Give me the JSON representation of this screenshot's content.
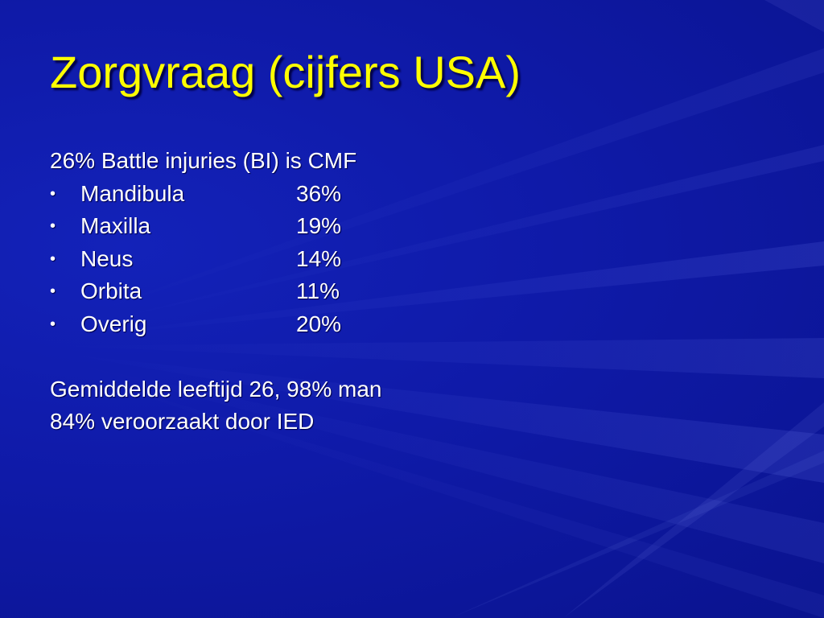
{
  "slide": {
    "title": "Zorgvraag (cijfers USA)",
    "intro": "26% Battle injuries (BI) is CMF",
    "bullet_symbol": "•",
    "items": [
      {
        "label": "Mandibula",
        "value": "36%"
      },
      {
        "label": "Maxilla",
        "value": "19%"
      },
      {
        "label": "Neus",
        "value": "14%"
      },
      {
        "label": "Orbita",
        "value": "11%"
      },
      {
        "label": "Overig",
        "value": "20%"
      }
    ],
    "footer_lines": [
      "Gemiddelde leeftijd 26, 98% man",
      "84% veroorzaakt door IED"
    ]
  },
  "colors": {
    "background": "#0d17a6",
    "title": "#ffff00",
    "text": "#ffffff"
  }
}
